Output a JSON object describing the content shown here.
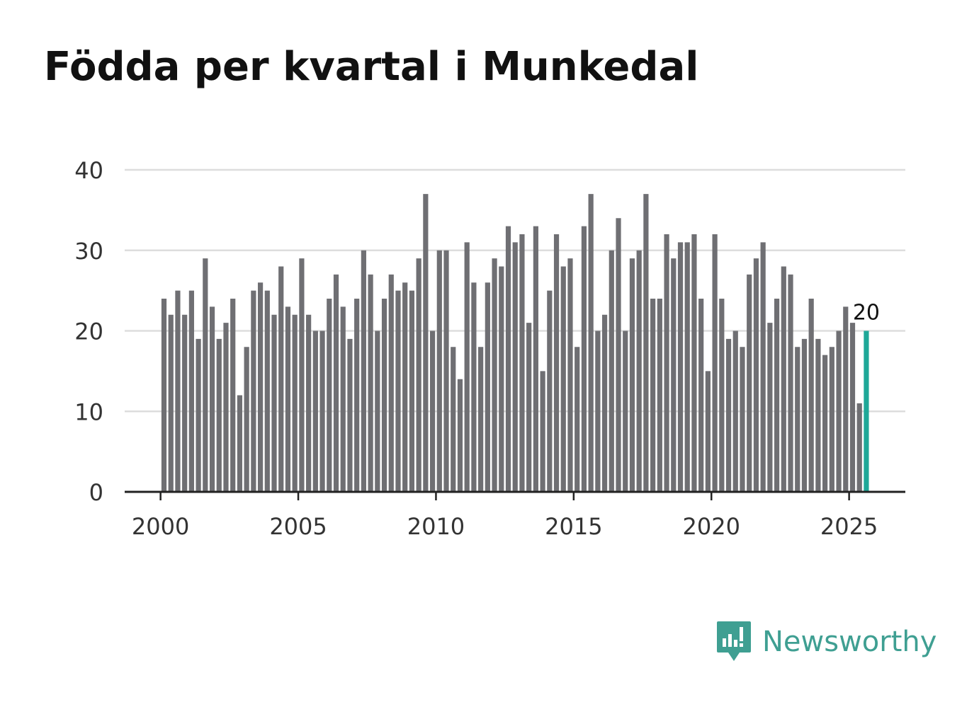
{
  "chart_data": {
    "type": "bar",
    "title": "Födda per kvartal i Munkedal",
    "xlabel": "",
    "ylabel": "",
    "ylim": [
      0,
      40
    ],
    "yticks": [
      0,
      10,
      20,
      30,
      40
    ],
    "xticks": [
      "2000",
      "2005",
      "2010",
      "2015",
      "2020",
      "2025"
    ],
    "x_start_year": 2000,
    "series": [
      {
        "name": "Födda",
        "values": [
          24,
          22,
          25,
          22,
          25,
          19,
          29,
          23,
          19,
          21,
          24,
          12,
          18,
          25,
          26,
          25,
          22,
          28,
          23,
          22,
          29,
          22,
          20,
          20,
          24,
          27,
          23,
          19,
          24,
          30,
          27,
          20,
          24,
          27,
          25,
          26,
          25,
          29,
          37,
          20,
          30,
          30,
          18,
          14,
          31,
          26,
          18,
          26,
          29,
          28,
          33,
          31,
          32,
          21,
          33,
          15,
          25,
          32,
          28,
          29,
          18,
          33,
          37,
          20,
          22,
          30,
          34,
          20,
          29,
          30,
          37,
          24,
          24,
          32,
          29,
          31,
          31,
          32,
          24,
          15,
          32,
          24,
          19,
          20,
          18,
          27,
          29,
          31,
          21,
          24,
          28,
          27,
          18,
          19,
          24,
          19,
          17,
          18,
          20,
          23,
          21,
          11,
          20
        ]
      }
    ],
    "highlight_last": true,
    "end_label": "20",
    "colors": {
      "bar": "#6f6f73",
      "highlight": "#1ea898",
      "grid": "#dddddd",
      "axis": "#222222"
    }
  },
  "brand": {
    "name": "Newsworthy",
    "icon": "newsworthy-logo-icon",
    "color": "#3f9f92"
  }
}
